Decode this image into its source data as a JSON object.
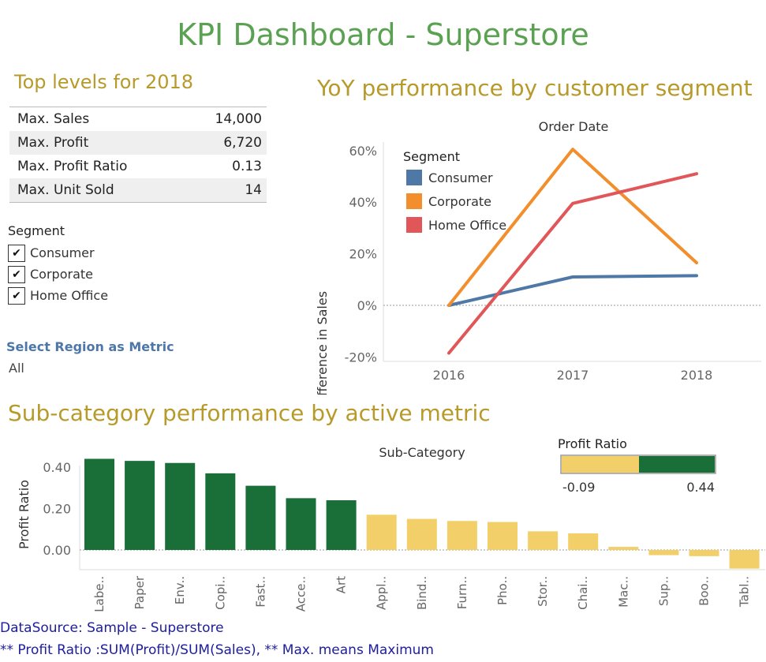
{
  "dashboard": {
    "title": "KPI Dashboard - Superstore"
  },
  "top_levels": {
    "title": "Top levels for 2018",
    "rows": [
      {
        "label": "Max. Sales",
        "value": "14,000"
      },
      {
        "label": "Max. Profit",
        "value": "6,720"
      },
      {
        "label": "Max. Profit Ratio",
        "value": "0.13"
      },
      {
        "label": "Max. Unit Sold",
        "value": "14"
      }
    ]
  },
  "segment_filter": {
    "label": "Segment",
    "options": [
      {
        "label": "Consumer",
        "checked": true
      },
      {
        "label": "Corporate",
        "checked": true
      },
      {
        "label": "Home Office",
        "checked": true
      }
    ],
    "check_glyph": "✔"
  },
  "region_param": {
    "label": "Select Region as Metric",
    "value": "All"
  },
  "yoy_section": {
    "title": "YoY performance by customer segment"
  },
  "sub_section": {
    "title": "Sub-category performance by active metric"
  },
  "footer": {
    "source": "DataSource: Sample - Superstore",
    "note": "** Profit Ratio :SUM(Profit)/SUM(Sales),  ** Max. means Maximum"
  },
  "colors": {
    "title_green": "#5aa152",
    "section_gold": "#b79a2a",
    "consumer": "#4e79a7",
    "corporate": "#f28e2b",
    "home_office": "#e15759",
    "positive_bar": "#1a6e37",
    "negative_bar": "#f2cf68",
    "footer_blue": "#1d1d9e",
    "region_blue": "#4d77a8"
  },
  "chart_data": [
    {
      "type": "line",
      "title": "Order Date",
      "xlabel": "",
      "ylabel": "% Difference in Sales",
      "x": [
        "2016",
        "2017",
        "2018"
      ],
      "ylim": [
        -25,
        65
      ],
      "yticks": [
        -20,
        0,
        20,
        40,
        60
      ],
      "ytick_labels": [
        "-20%",
        "0%",
        "20%",
        "40%",
        "60%"
      ],
      "legend_title": "Segment",
      "legend_position": "top-left",
      "zero_line": true,
      "series": [
        {
          "name": "Consumer",
          "color": "#4e79a7",
          "values": [
            0,
            11,
            11.5
          ]
        },
        {
          "name": "Corporate",
          "color": "#f28e2b",
          "values": [
            0,
            60.5,
            16.5
          ]
        },
        {
          "name": "Home Office",
          "color": "#e15759",
          "values": [
            -18.5,
            39.5,
            51
          ]
        }
      ]
    },
    {
      "type": "bar",
      "title": "Sub-Category",
      "xlabel": "",
      "ylabel": "Profit Ratio",
      "categories": [
        "Labe..",
        "Paper",
        "Env..",
        "Copi..",
        "Fast..",
        "Acce..",
        "Art",
        "Appl..",
        "Bind..",
        "Furn..",
        "Pho..",
        "Stor..",
        "Chai..",
        "Mac..",
        "Sup..",
        "Boo..",
        "Tabl.."
      ],
      "values": [
        0.44,
        0.43,
        0.42,
        0.37,
        0.31,
        0.25,
        0.24,
        0.17,
        0.15,
        0.14,
        0.135,
        0.09,
        0.08,
        0.015,
        -0.025,
        -0.03,
        -0.09
      ],
      "ylim": [
        -0.11,
        0.48
      ],
      "yticks": [
        0,
        0.2,
        0.4
      ],
      "ytick_labels": [
        "0.00",
        "0.20",
        "0.40"
      ],
      "threshold": 0.2,
      "zero_line": true,
      "legend": {
        "title": "Profit Ratio",
        "min_label": "-0.09",
        "max_label": "0.44",
        "position": "top-right"
      }
    }
  ]
}
